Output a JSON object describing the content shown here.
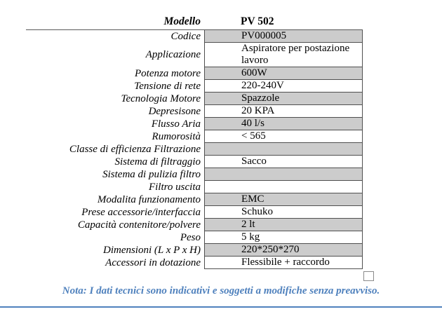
{
  "header": {
    "label": "Modello",
    "value": "PV 502"
  },
  "table": {
    "rows": [
      {
        "label": "Codice",
        "value": "PV000005",
        "shaded": true
      },
      {
        "label": "Applicazione",
        "value": "Aspiratore per postazione lavoro",
        "shaded": false
      },
      {
        "label": "Potenza motore",
        "value": "600W",
        "shaded": true
      },
      {
        "label": "Tensione di rete",
        "value": "220-240V",
        "shaded": false
      },
      {
        "label": "Tecnologia Motore",
        "value": "Spazzole",
        "shaded": true
      },
      {
        "label": "Depresisone",
        "value": "20 KPA",
        "shaded": false
      },
      {
        "label": "Flusso Aria",
        "value": "40 l/s",
        "shaded": true
      },
      {
        "label": "Rumorosità",
        "value": "< 565",
        "shaded": false
      },
      {
        "label": "Classe di efficienza Filtrazione",
        "value": "",
        "shaded": true
      },
      {
        "label": "Sistema di filtraggio",
        "value": "Sacco",
        "shaded": false
      },
      {
        "label": "Sistema di pulizia filtro",
        "value": "",
        "shaded": true
      },
      {
        "label": "Filtro uscita",
        "value": "",
        "shaded": false
      },
      {
        "label": "Modalita funzionamento",
        "value": "EMC",
        "shaded": true
      },
      {
        "label": "Prese accessorie/interfaccia",
        "value": "Schuko",
        "shaded": false
      },
      {
        "label": "Capacità contenitore/polvere",
        "value": "2 lt",
        "shaded": true
      },
      {
        "label": "Peso",
        "value": "5 kg",
        "shaded": false
      },
      {
        "label": "Dimensioni (L x P x H)",
        "value": "220*250*270",
        "shaded": true
      },
      {
        "label": "Accessori in dotazione",
        "value": "Flessibile + raccordo",
        "shaded": false
      }
    ]
  },
  "footer": {
    "note": "Nota: I dati tecnici sono indicativi e soggetti a modifiche senza preavviso."
  },
  "colors": {
    "accent_blue": "#4f81bd",
    "row_shade": "#cccccc",
    "cell_border": "#4f4f4f"
  }
}
